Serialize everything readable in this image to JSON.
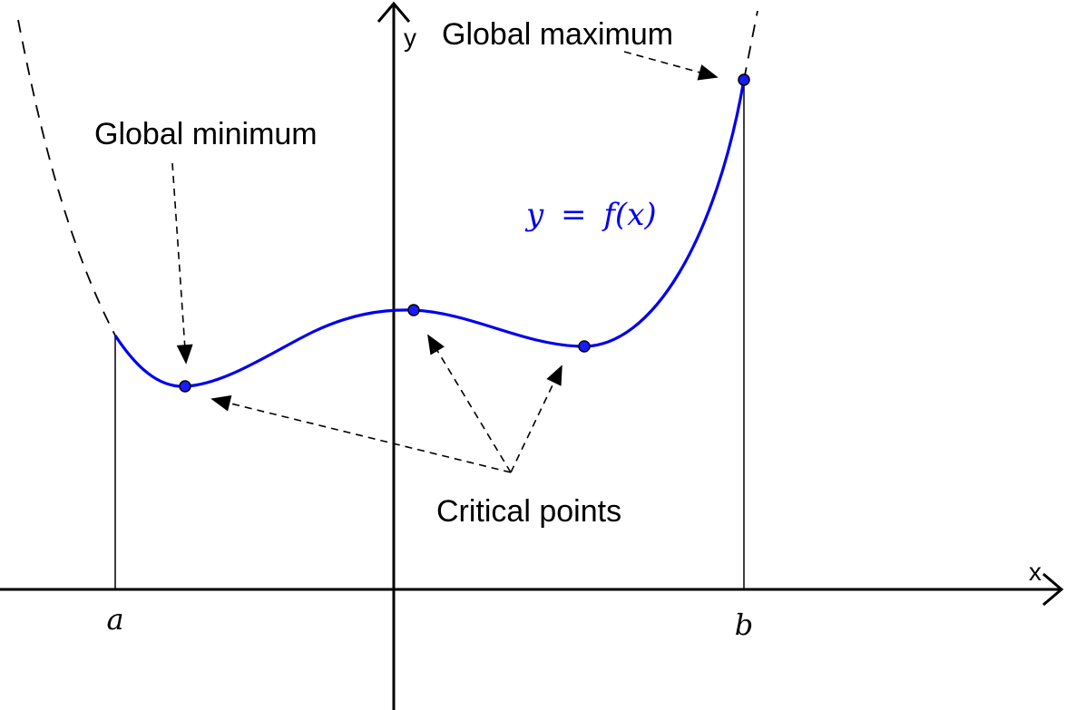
{
  "axes": {
    "x_label": "x",
    "y_label": "y"
  },
  "points": {
    "a_label": "a",
    "b_label": "b"
  },
  "curve": {
    "label_y": "y",
    "label_eq": "=",
    "label_fx": "f(x)",
    "color": "#0000ee"
  },
  "annotations": {
    "global_max": "Global maximum",
    "global_min": "Global minimum",
    "critical_points": "Critical points"
  },
  "colors": {
    "curve": "#0000ee",
    "axes": "#000000",
    "point_fill": "#1a1aff"
  }
}
